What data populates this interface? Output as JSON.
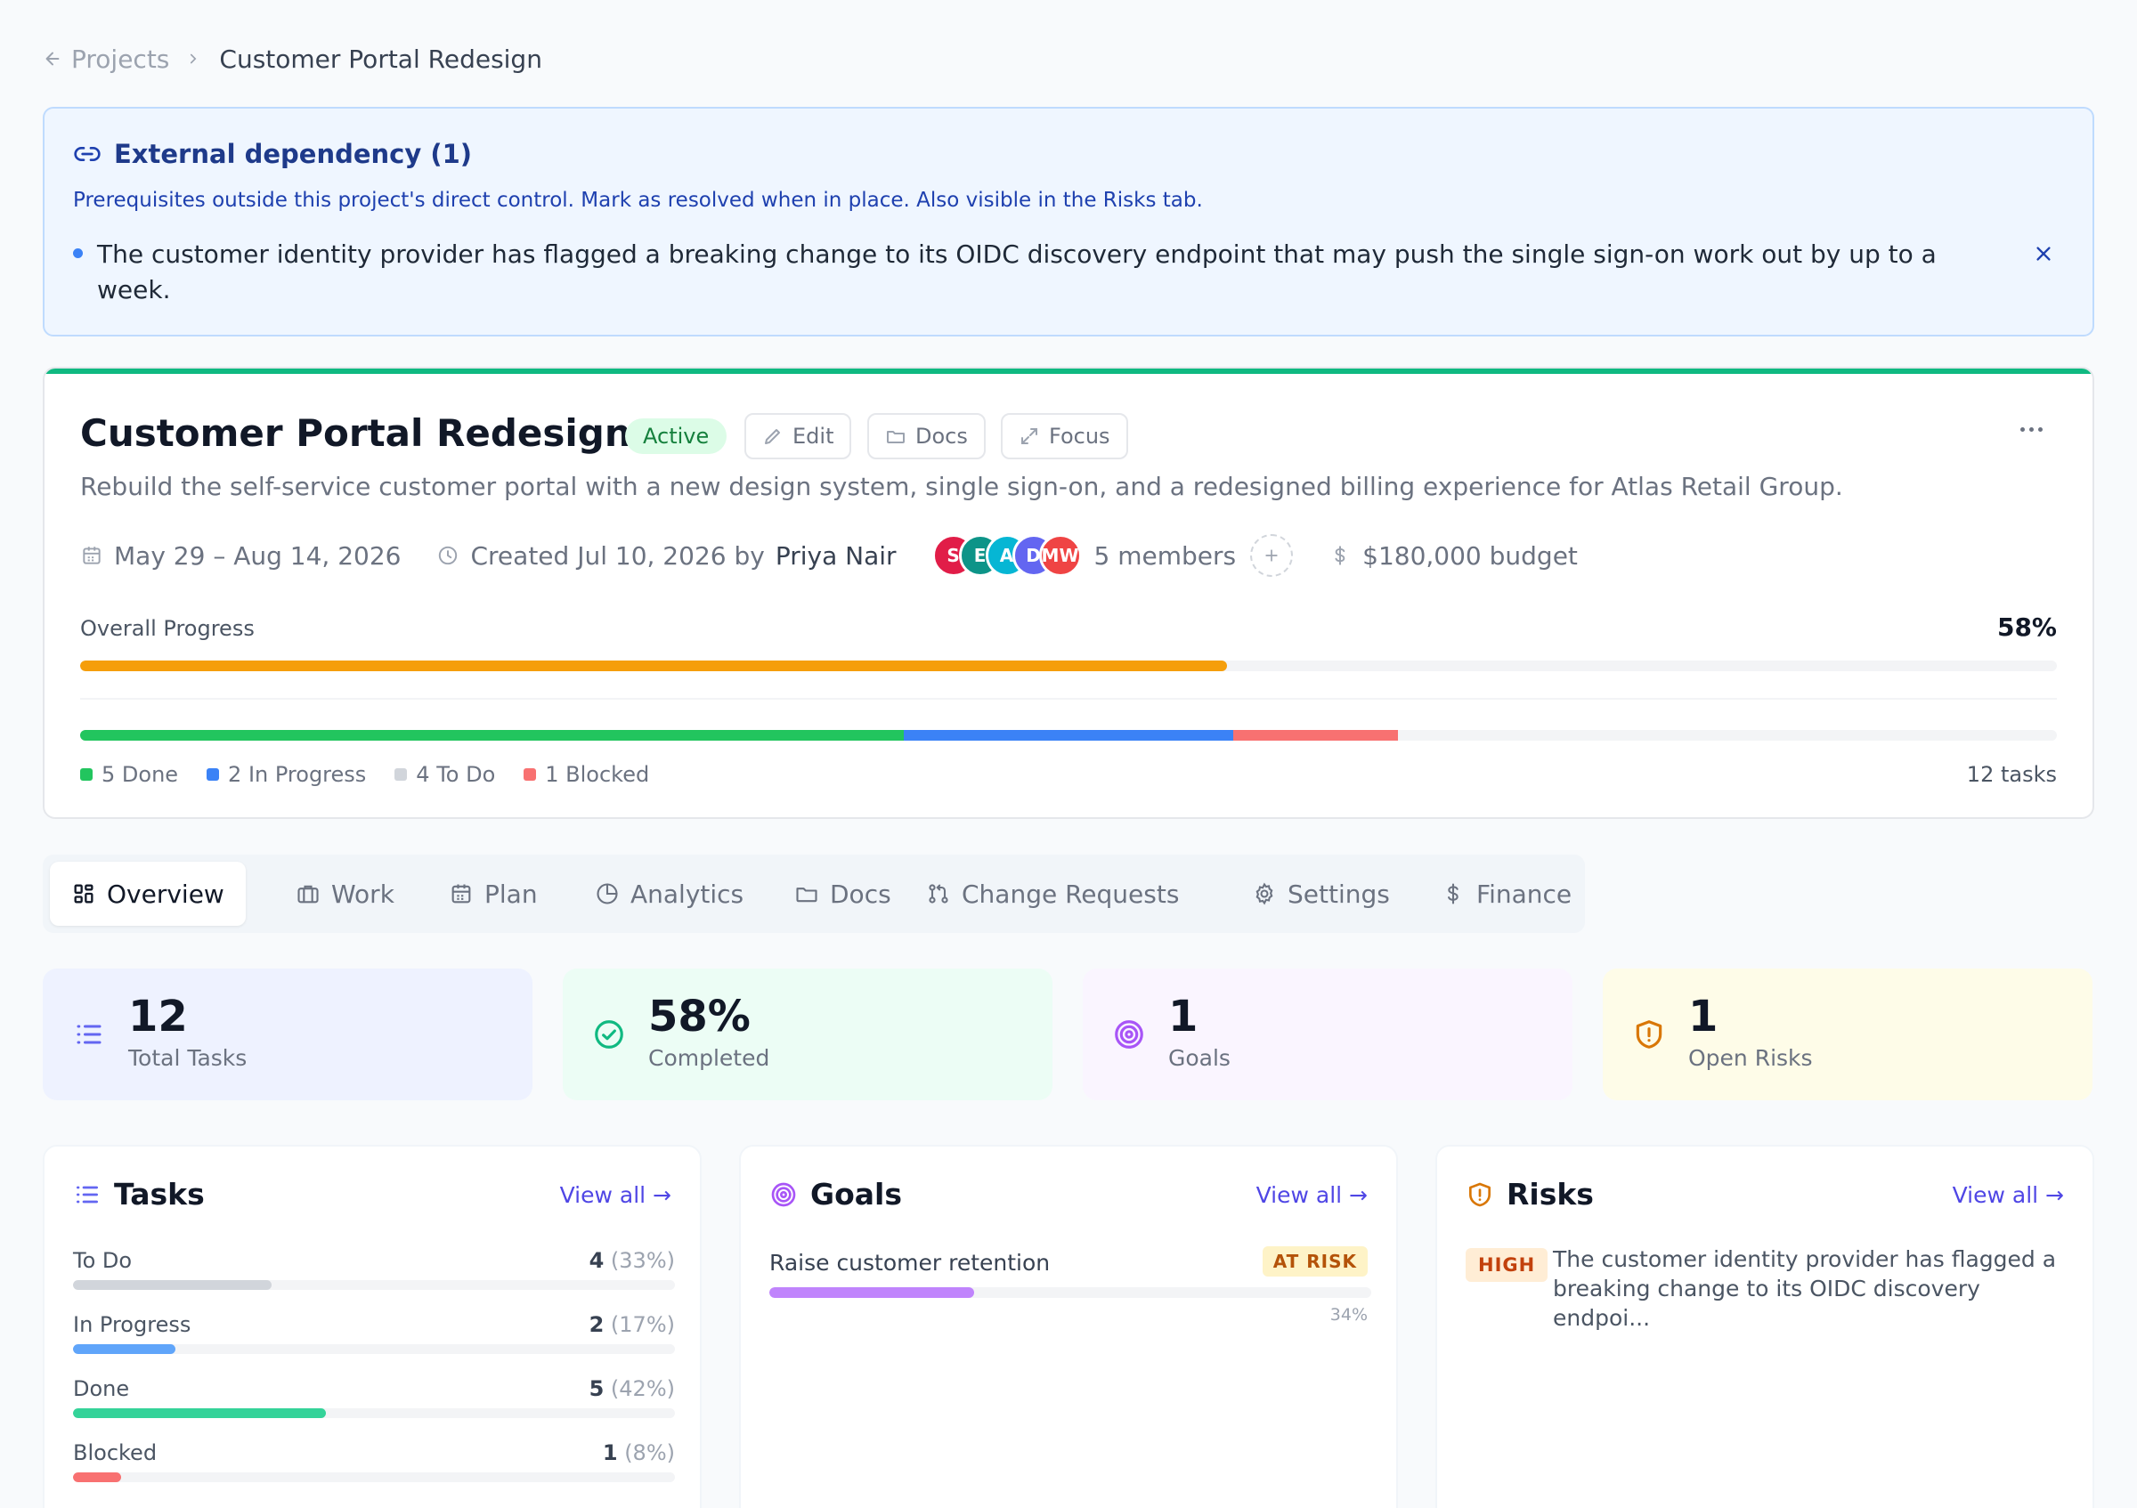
{
  "breadcrumb": {
    "parent": "Projects",
    "current": "Customer Portal Redesign"
  },
  "banner": {
    "title": "External dependency (1)",
    "subtitle": "Prerequisites outside this project's direct control. Mark as resolved when in place. Also visible in the Risks tab.",
    "item": "The customer identity provider has flagged a breaking change to its OIDC discovery endpoint that may push the single sign-on work out by up to a week."
  },
  "project": {
    "title": "Customer Portal Redesign",
    "status": "Active",
    "buttons": {
      "edit": "Edit",
      "docs": "Docs",
      "focus": "Focus"
    },
    "description": "Rebuild the self-service customer portal with a new design system, single sign-on, and a redesigned billing experience for Atlas Retail Group.",
    "date_range": "May 29 – Aug 14, 2026",
    "created": "Created Jul 10, 2026 by",
    "owner": "Priya Nair",
    "members": [
      {
        "initials": "S",
        "color": "#e11d48"
      },
      {
        "initials": "E",
        "color": "#0d9488"
      },
      {
        "initials": "A",
        "color": "#06b6d4"
      },
      {
        "initials": "D",
        "color": "#6366f1"
      },
      {
        "initials": "MW",
        "color": "#ef4444"
      }
    ],
    "members_label": "5 members",
    "budget": "$180,000 budget",
    "progress_label": "Overall Progress",
    "progress_pct_label": "58%",
    "progress_value": 0.58,
    "breakdown": [
      {
        "label": "5 Done",
        "count": 5,
        "color": "#22c55e"
      },
      {
        "label": "2 In Progress",
        "count": 2,
        "color": "#3b82f6"
      },
      {
        "label": "4 To Do",
        "count": 4,
        "color": "#d1d5db"
      },
      {
        "label": "1 Blocked",
        "count": 1,
        "color": "#f87171"
      }
    ],
    "tasks_total_label": "12 tasks"
  },
  "tabs": [
    {
      "label": "Overview",
      "icon": "layout-grid-icon",
      "active": true
    },
    {
      "label": "Work",
      "icon": "briefcase-icon"
    },
    {
      "label": "Plan",
      "icon": "calendar-icon"
    },
    {
      "label": "Analytics",
      "icon": "pie-chart-icon"
    },
    {
      "label": "Docs",
      "icon": "folder-icon"
    },
    {
      "label": "Change Requests",
      "icon": "git-pull-request-icon"
    },
    {
      "label": "Settings",
      "icon": "gear-icon"
    },
    {
      "label": "Finance",
      "icon": "dollar-icon"
    }
  ],
  "stats": [
    {
      "value": "12",
      "label": "Total Tasks",
      "bg": "#eef2ff",
      "color": "#6366f1",
      "icon": "list-icon"
    },
    {
      "value": "58%",
      "label": "Completed",
      "bg": "#ecfdf5",
      "color": "#10b981",
      "icon": "check-circle-icon"
    },
    {
      "value": "1",
      "label": "Goals",
      "bg": "#faf5ff",
      "color": "#a855f7",
      "icon": "target-icon"
    },
    {
      "value": "1",
      "label": "Open Risks",
      "bg": "#fefce8",
      "color": "#d97706",
      "icon": "shield-alert-icon"
    }
  ],
  "tasks_panel": {
    "title": "Tasks",
    "view_all": "View all →",
    "rows": [
      {
        "label": "To Do",
        "count": "4",
        "pct": "(33%)",
        "value": 0.33,
        "color": "#d1d5db"
      },
      {
        "label": "In Progress",
        "count": "2",
        "pct": "(17%)",
        "value": 0.17,
        "color": "#60a5fa"
      },
      {
        "label": "Done",
        "count": "5",
        "pct": "(42%)",
        "value": 0.42,
        "color": "#34d399"
      },
      {
        "label": "Blocked",
        "count": "1",
        "pct": "(8%)",
        "value": 0.08,
        "color": "#f87171"
      }
    ]
  },
  "goals_panel": {
    "title": "Goals",
    "view_all": "View all →",
    "goal": {
      "name": "Raise customer retention",
      "status": "AT RISK",
      "pct_label": "34%",
      "value": 0.34
    }
  },
  "risks_panel": {
    "title": "Risks",
    "view_all": "View all →",
    "risk": {
      "severity": "HIGH",
      "text": "The customer identity provider has flagged a breaking change to its OIDC discovery endpoi..."
    }
  }
}
